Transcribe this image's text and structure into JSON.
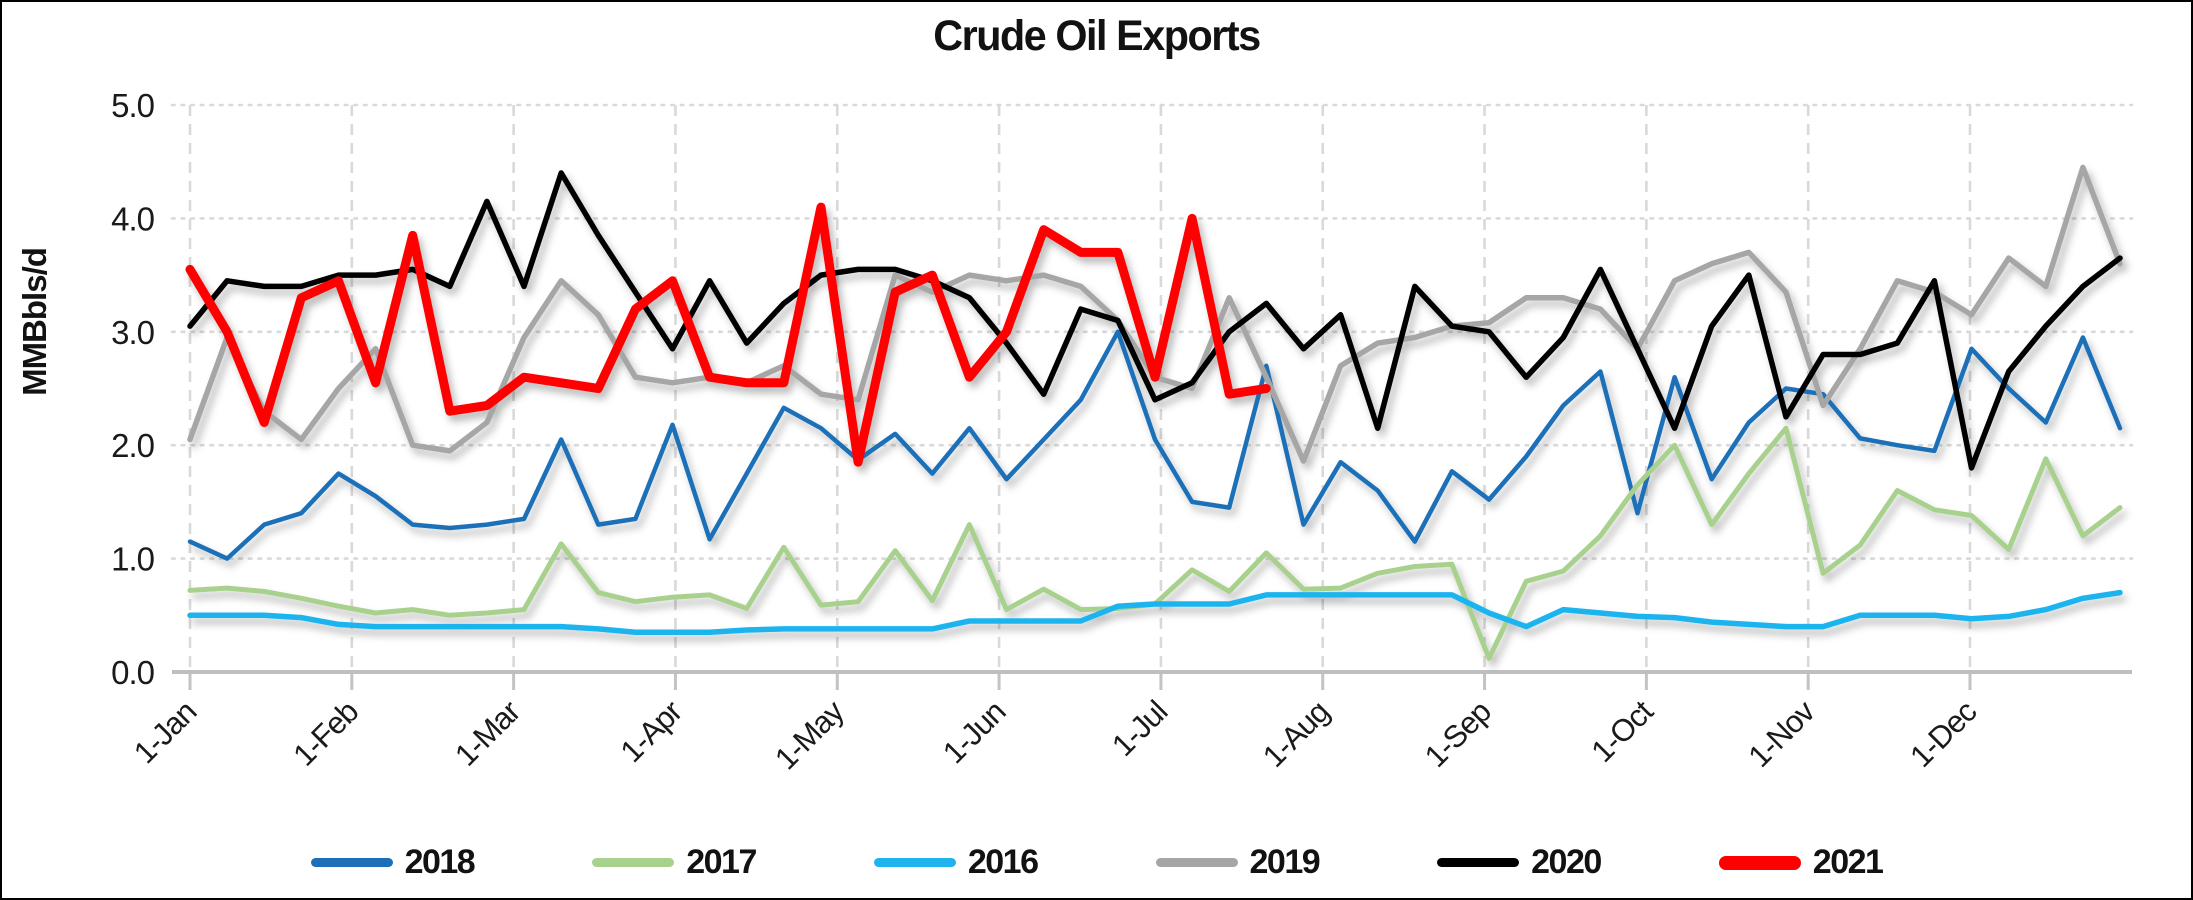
{
  "page": {
    "title": "Crude Oil Exports"
  },
  "chart_data": {
    "type": "line",
    "title": "Crude Oil Exports",
    "xlabel": "",
    "ylabel": "MMBbls/d",
    "ylim": [
      0,
      5
    ],
    "ytick_labels": [
      "0.0",
      "1.0",
      "2.0",
      "3.0",
      "4.0",
      "5.0"
    ],
    "xtick_labels": [
      "1-Jan",
      "1-Feb",
      "1-Mar",
      "1-Apr",
      "1-May",
      "1-Jun",
      "1-Jul",
      "1-Aug",
      "1-Sep",
      "1-Oct",
      "1-Nov",
      "1-Dec"
    ],
    "x_unit": "weekly points, one per week starting 1-Jan",
    "grid": "both",
    "legend_position": "bottom",
    "axis_color": "#bfbfbf",
    "gridline_color": "#d9d9d9",
    "series": [
      {
        "name": "2018",
        "color": "#1d70b8",
        "width": 4.5,
        "values": [
          1.15,
          1.0,
          1.3,
          1.4,
          1.75,
          1.55,
          1.3,
          1.27,
          1.3,
          1.35,
          2.05,
          1.3,
          1.35,
          2.18,
          1.17,
          1.75,
          2.33,
          2.15,
          1.87,
          2.1,
          1.75,
          2.15,
          1.7,
          2.05,
          2.4,
          3.0,
          2.05,
          1.5,
          1.45,
          2.7,
          1.3,
          1.85,
          1.6,
          1.15,
          1.77,
          1.52,
          1.9,
          2.35,
          2.65,
          1.4,
          2.6,
          1.7,
          2.2,
          2.5,
          2.45,
          2.06,
          2.0,
          1.95,
          2.85,
          2.5,
          2.2,
          2.95,
          2.15
        ]
      },
      {
        "name": "2017",
        "color": "#a9d18e",
        "width": 5,
        "values": [
          0.72,
          0.74,
          0.71,
          0.65,
          0.58,
          0.52,
          0.55,
          0.5,
          0.52,
          0.55,
          1.13,
          0.7,
          0.62,
          0.66,
          0.68,
          0.56,
          1.1,
          0.59,
          0.62,
          1.07,
          0.63,
          1.3,
          0.55,
          0.73,
          0.55,
          0.56,
          0.6,
          0.9,
          0.71,
          1.05,
          0.73,
          0.74,
          0.87,
          0.93,
          0.95,
          0.12,
          0.8,
          0.89,
          1.2,
          1.65,
          2.0,
          1.3,
          1.75,
          2.15,
          0.87,
          1.12,
          1.6,
          1.43,
          1.38,
          1.08,
          1.88,
          1.2,
          1.45
        ]
      },
      {
        "name": "2016",
        "color": "#1fb4ee",
        "width": 5.5,
        "values": [
          0.5,
          0.5,
          0.5,
          0.48,
          0.42,
          0.4,
          0.4,
          0.4,
          0.4,
          0.4,
          0.4,
          0.38,
          0.35,
          0.35,
          0.35,
          0.37,
          0.38,
          0.38,
          0.38,
          0.38,
          0.38,
          0.45,
          0.45,
          0.45,
          0.45,
          0.58,
          0.6,
          0.6,
          0.6,
          0.68,
          0.68,
          0.68,
          0.68,
          0.68,
          0.68,
          0.52,
          0.4,
          0.55,
          0.52,
          0.49,
          0.48,
          0.44,
          0.42,
          0.4,
          0.4,
          0.5,
          0.5,
          0.5,
          0.47,
          0.49,
          0.55,
          0.65,
          0.7
        ]
      },
      {
        "name": "2019",
        "color": "#a6a6a6",
        "width": 5.5,
        "values": [
          2.05,
          2.95,
          2.3,
          2.05,
          2.5,
          2.85,
          2.0,
          1.95,
          2.2,
          2.95,
          3.45,
          3.15,
          2.6,
          2.55,
          2.6,
          2.55,
          2.7,
          2.45,
          2.4,
          3.5,
          3.35,
          3.5,
          3.45,
          3.5,
          3.4,
          3.1,
          2.6,
          2.5,
          3.3,
          2.6,
          1.86,
          2.7,
          2.9,
          2.95,
          3.05,
          3.08,
          3.3,
          3.3,
          3.2,
          2.85,
          3.45,
          3.6,
          3.7,
          3.35,
          2.35,
          2.85,
          3.45,
          3.35,
          3.15,
          3.65,
          3.4,
          4.45,
          3.6
        ]
      },
      {
        "name": "2020",
        "color": "#000000",
        "width": 5.5,
        "values": [
          3.05,
          3.45,
          3.4,
          3.4,
          3.5,
          3.5,
          3.55,
          3.4,
          4.15,
          3.4,
          4.4,
          3.85,
          3.35,
          2.85,
          3.45,
          2.9,
          3.25,
          3.5,
          3.55,
          3.55,
          3.45,
          3.3,
          2.9,
          2.45,
          3.2,
          3.1,
          2.4,
          2.55,
          3.0,
          3.25,
          2.85,
          3.15,
          2.15,
          3.4,
          3.05,
          3.0,
          2.6,
          2.95,
          3.55,
          2.85,
          2.15,
          3.05,
          3.5,
          2.25,
          2.8,
          2.8,
          2.9,
          3.45,
          1.8,
          2.65,
          3.05,
          3.4,
          3.65
        ]
      },
      {
        "name": "2021",
        "color": "#ff0000",
        "width": 9,
        "values": [
          3.55,
          3.0,
          2.2,
          3.3,
          3.45,
          2.55,
          3.85,
          2.3,
          2.35,
          2.6,
          2.55,
          2.5,
          3.2,
          3.45,
          2.6,
          2.55,
          2.55,
          4.1,
          1.85,
          3.35,
          3.5,
          2.6,
          3.0,
          3.9,
          3.7,
          3.7,
          2.6,
          4.0,
          2.45,
          2.5
        ]
      }
    ]
  }
}
